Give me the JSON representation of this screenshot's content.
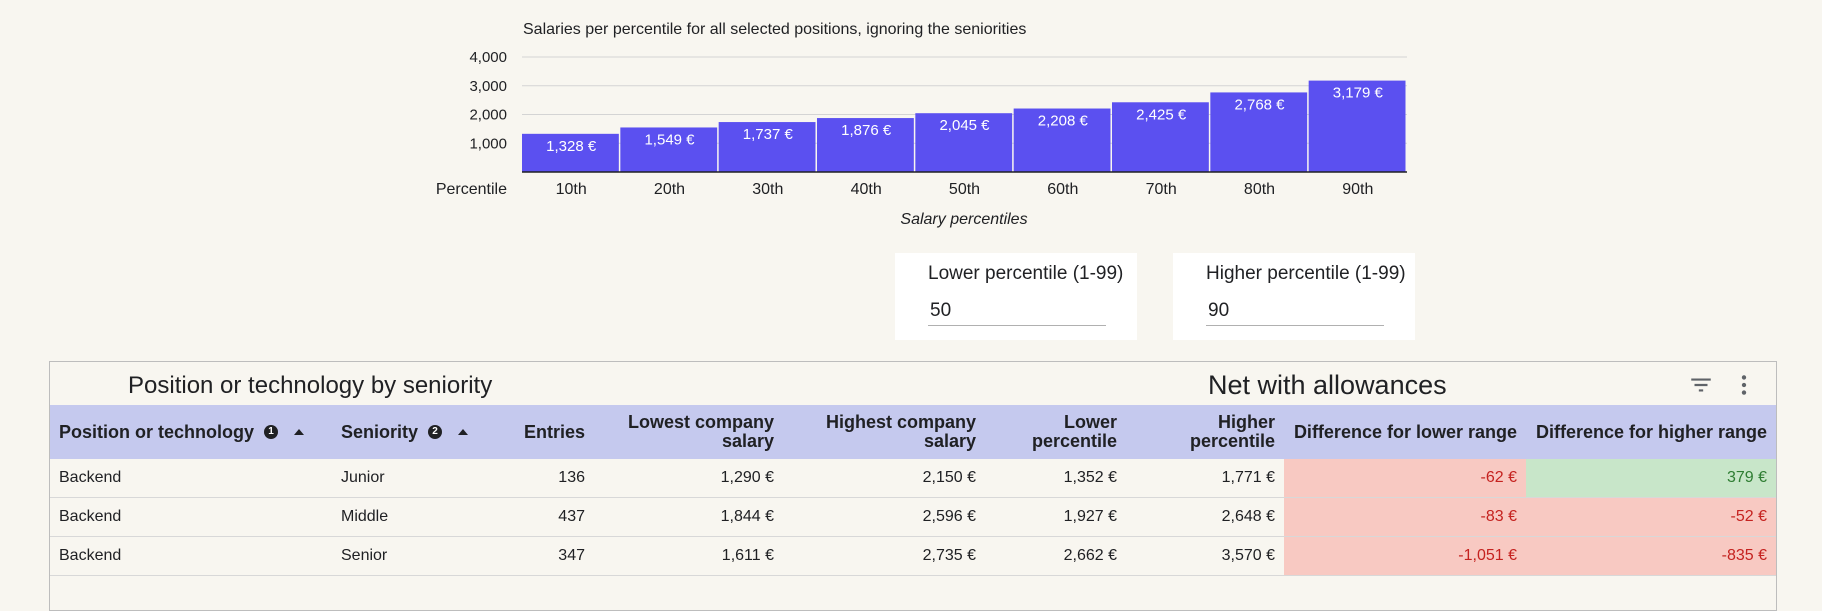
{
  "chart_data": {
    "type": "bar",
    "title": "Salaries per percentile for all selected positions, ignoring the seniorities",
    "categories": [
      "10th",
      "20th",
      "30th",
      "40th",
      "50th",
      "60th",
      "70th",
      "80th",
      "90th"
    ],
    "values": [
      1328,
      1549,
      1737,
      1876,
      2045,
      2208,
      2425,
      2768,
      3179
    ],
    "data_labels": [
      "1,328 €",
      "1,549 €",
      "1,737 €",
      "1,876 €",
      "2,045 €",
      "2,208 €",
      "2,425 €",
      "2,768 €",
      "3,179 €"
    ],
    "yticks": [
      1000,
      2000,
      3000,
      4000
    ],
    "ytick_labels": [
      "1,000",
      "2,000",
      "3,000",
      "4,000"
    ],
    "ylim": [
      0,
      4000
    ],
    "x_axis_caption": "Percentile",
    "xlabel": "Salary percentiles",
    "grid": true,
    "bar_color": "#5b50f0",
    "value_label_color": "#ffffff"
  },
  "controls": {
    "lower": {
      "label": "Lower percentile (1-99)",
      "value": "50"
    },
    "higher": {
      "label": "Higher percentile (1-99)",
      "value": "90"
    }
  },
  "table": {
    "title": "Position or technology by seniority",
    "metric": "Net with allowances",
    "filter_icon": "filter-icon",
    "menu_icon": "more-vert-icon",
    "headers": {
      "position": "Position or technology",
      "position_sort": "1",
      "seniority": "Seniority",
      "seniority_sort": "2",
      "entries": "Entries",
      "lowest": "Lowest company salary",
      "highest": "Highest company salary",
      "lower_pct": "Lower percentile",
      "higher_pct": "Higher percentile",
      "diff_lower": "Difference for lower range",
      "diff_higher": "Difference for higher range"
    },
    "rows": [
      {
        "position": "Backend",
        "seniority": "Junior",
        "entries": "136",
        "lowest": "1,290 €",
        "highest": "2,150 €",
        "lower_pct": "1,352 €",
        "higher_pct": "1,771 €",
        "diff_lower": "-62 €",
        "diff_higher": "379 €"
      },
      {
        "position": "Backend",
        "seniority": "Middle",
        "entries": "437",
        "lowest": "1,844 €",
        "highest": "2,596 €",
        "lower_pct": "1,927 €",
        "higher_pct": "2,648 €",
        "diff_lower": "-83 €",
        "diff_higher": "-52 €"
      },
      {
        "position": "Backend",
        "seniority": "Senior",
        "entries": "347",
        "lowest": "1,611 €",
        "highest": "2,735 €",
        "lower_pct": "2,662 €",
        "higher_pct": "3,570 €",
        "diff_lower": "-1,051 €",
        "diff_higher": "-835 €"
      }
    ],
    "colors": {
      "negative_bg": "#f8c9c2",
      "negative_text": "#c5221f",
      "positive_bg": "#c8e6c9",
      "positive_text": "#2e7d32"
    }
  }
}
